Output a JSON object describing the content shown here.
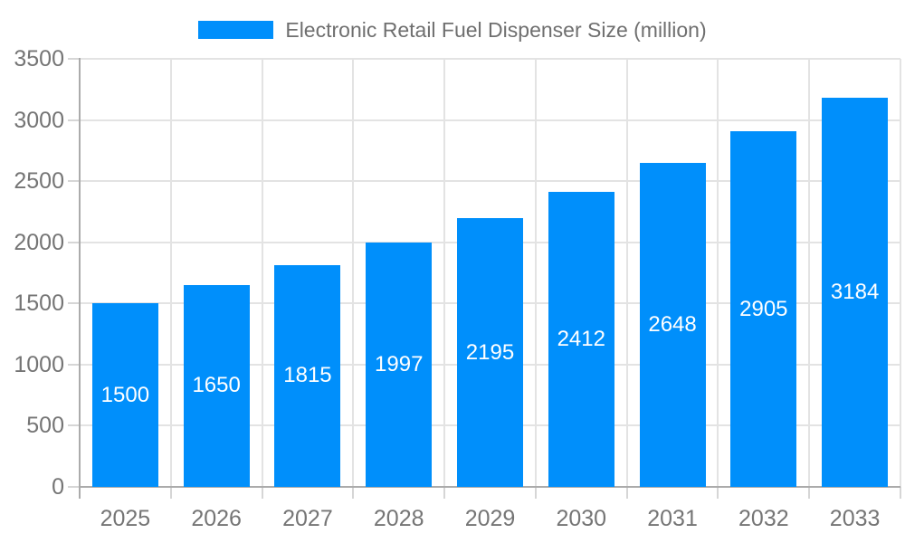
{
  "legend": {
    "label": "Electronic Retail Fuel Dispenser Size (million)"
  },
  "chart_data": {
    "type": "bar",
    "title": "Electronic Retail Fuel Dispenser Size (million)",
    "categories": [
      "2025",
      "2026",
      "2027",
      "2028",
      "2029",
      "2030",
      "2031",
      "2032",
      "2033"
    ],
    "values": [
      1500,
      1650,
      1815,
      1997,
      2195,
      2412,
      2648,
      2905,
      3184
    ],
    "xlabel": "",
    "ylabel": "",
    "ylim": [
      0,
      3500
    ],
    "ytick_step": 500,
    "yticks": [
      0,
      500,
      1000,
      1500,
      2000,
      2500,
      3000,
      3500
    ],
    "grid": true,
    "legend_position": "top",
    "bar_color": "#008FFB",
    "data_label_color": "#ffffff",
    "axis_label_color": "#757575",
    "grid_color": "#e3e3e3",
    "axis_line_color": "#ababab"
  }
}
